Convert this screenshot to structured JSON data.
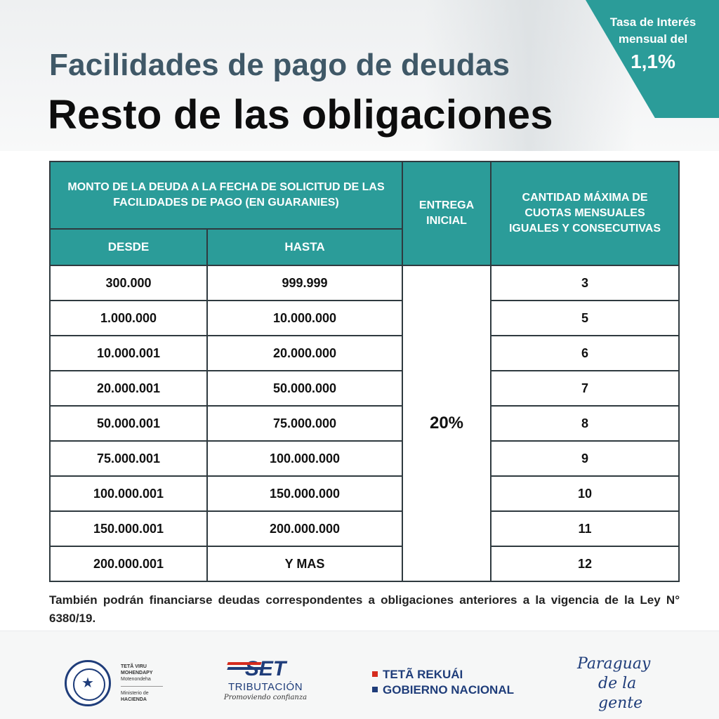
{
  "header": {
    "title": "Facilidades de pago de deudas",
    "subtitle": "Resto de las obligaciones"
  },
  "rate_badge": {
    "line1": "Tasa de Interés",
    "line2": "mensual del",
    "value": "1,1%"
  },
  "table": {
    "group_header": "MONTO DE LA DEUDA A LA FECHA DE SOLICITUD DE LAS FACILIDADES DE PAGO (EN GUARANIES)",
    "col_desde": "DESDE",
    "col_hasta": "HASTA",
    "col_entrega": "ENTREGA INICIAL",
    "col_cuotas": "CANTIDAD MÁXIMA DE CUOTAS MENSUALES IGUALES Y CONSECUTIVAS",
    "entrega_value": "20%",
    "rows": [
      {
        "desde": "300.000",
        "hasta": "999.999",
        "cuotas": "3"
      },
      {
        "desde": "1.000.000",
        "hasta": "10.000.000",
        "cuotas": "5"
      },
      {
        "desde": "10.000.001",
        "hasta": "20.000.000",
        "cuotas": "6"
      },
      {
        "desde": "20.000.001",
        "hasta": "50.000.000",
        "cuotas": "7"
      },
      {
        "desde": "50.000.001",
        "hasta": "75.000.000",
        "cuotas": "8"
      },
      {
        "desde": "75.000.001",
        "hasta": "100.000.000",
        "cuotas": "9"
      },
      {
        "desde": "100.000.001",
        "hasta": "150.000.000",
        "cuotas": "10"
      },
      {
        "desde": "150.000.001",
        "hasta": "200.000.000",
        "cuotas": "11"
      },
      {
        "desde": "200.000.001",
        "hasta": "Y MAS",
        "cuotas": "12"
      }
    ]
  },
  "note": "También podrán financiarse deudas correspondentes a obligaciones anteriores a la vigencia de la Ley N° 6380/19.",
  "footer": {
    "ministry_line1": "TETÃ VIRU",
    "ministry_line2": "MOHENDAPY",
    "ministry_line3": "Motenondeha",
    "ministry_line4": "Ministerio de",
    "ministry_line5": "HACIENDA",
    "set_mark": "SET",
    "set_sub": "TRIBUTACIÓN",
    "set_tagline": "Promoviendo confianza",
    "gov_line1": "TETÃ REKUÁI",
    "gov_line2": "GOBIERNO NACIONAL",
    "slogan_line1": "Paraguay",
    "slogan_line2": "de la gente"
  },
  "colors": {
    "accent_teal": "#2b9c99",
    "title_slate": "#3f5867",
    "brand_blue": "#1f3d7a",
    "flag_red": "#d52b1e"
  },
  "icons": {
    "seal": "national-seal-icon",
    "star": "star-icon"
  }
}
